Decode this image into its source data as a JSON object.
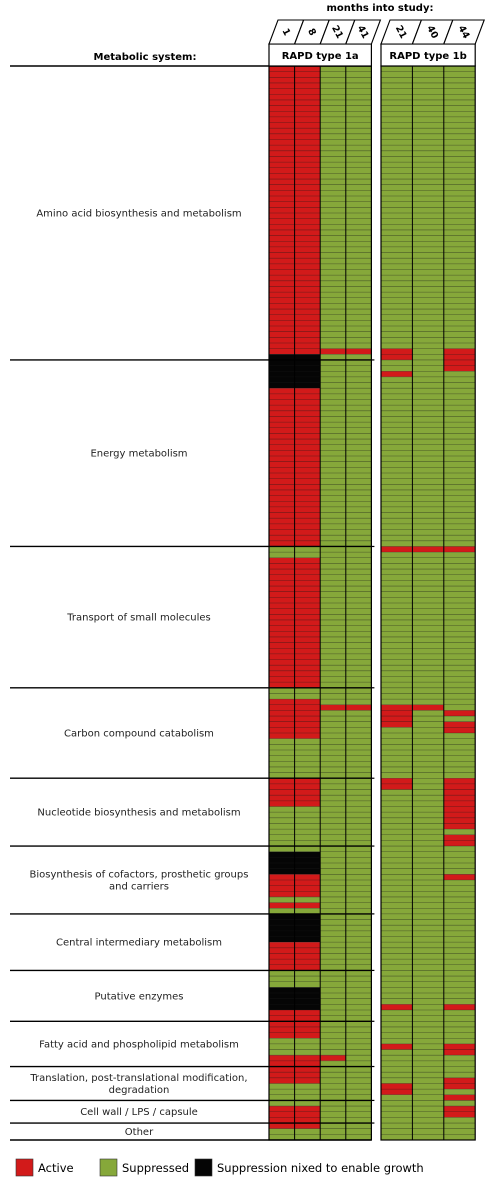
{
  "chart_data": {
    "type": "heatmap",
    "title": "",
    "x_axis_title": "months into study:",
    "y_axis_title": "Metabolic system:",
    "groups": [
      {
        "name": "RAPD type 1a",
        "columns": [
          "1",
          "8",
          "21",
          "41"
        ]
      },
      {
        "name": "RAPD type 1b",
        "columns": [
          "21",
          "40",
          "44"
        ]
      }
    ],
    "categories": [
      {
        "name": "Amino acid biosynthesis and metabolism",
        "rows": 52
      },
      {
        "name": "Energy metabolism",
        "rows": 33
      },
      {
        "name": "Transport of small molecules",
        "rows": 25
      },
      {
        "name": "Carbon compound catabolism",
        "rows": 16
      },
      {
        "name": "Nucleotide biosynthesis and metabolism",
        "rows": 12
      },
      {
        "name": "Biosynthesis of cofactors, prosthetic groups and carriers",
        "rows": 12
      },
      {
        "name": "Central intermediary metabolism",
        "rows": 10
      },
      {
        "name": "Putative enzymes",
        "rows": 9
      },
      {
        "name": "Fatty acid and phospholipid metabolism",
        "rows": 8
      },
      {
        "name": "Translation, post-translational modification, degradation",
        "rows": 6
      },
      {
        "name": "Cell wall / LPS / capsule",
        "rows": 4
      },
      {
        "name": "Other",
        "rows": 3
      }
    ],
    "states": {
      "A": "Active",
      "S": "Suppressed",
      "X": "Suppression nixed to enable growth"
    },
    "colors": {
      "A": "#d21a1a",
      "S": "#86a83a",
      "X": "#050505"
    },
    "legend": [
      {
        "key": "A",
        "label": "Active"
      },
      {
        "key": "S",
        "label": "Suppressed"
      },
      {
        "key": "X",
        "label": "Suppression nixed to enable growth"
      }
    ],
    "runs": [
      [
        "A",
        0,
        1,
        0,
        0
      ],
      [
        "A",
        0,
        1,
        0,
        50
      ],
      [
        "A",
        0,
        1,
        57,
        84
      ],
      [
        "X",
        0,
        1,
        51,
        56
      ],
      [
        "A",
        0,
        1,
        87,
        109
      ],
      [
        "A",
        0,
        1,
        112,
        118
      ],
      [
        "A",
        0,
        1,
        126,
        130
      ],
      [
        "X",
        0,
        1,
        139,
        142
      ],
      [
        "A",
        0,
        1,
        143,
        146
      ],
      [
        "A",
        0,
        1,
        148,
        148
      ],
      [
        "X",
        0,
        1,
        150,
        154
      ],
      [
        "A",
        0,
        1,
        155,
        159
      ],
      [
        "X",
        0,
        1,
        163,
        166
      ],
      [
        "A",
        0,
        1,
        167,
        171
      ],
      [
        "A",
        0,
        1,
        175,
        179
      ],
      [
        "A",
        0,
        1,
        184,
        187
      ],
      [
        "A",
        0,
        1,
        190,
        191
      ],
      [
        "X",
        0,
        1,
        192,
        193
      ],
      [
        "A",
        0,
        1,
        194,
        196
      ],
      [
        "A",
        0,
        1,
        197,
        199
      ],
      [
        "X",
        0,
        1,
        200,
        201
      ],
      [
        "A",
        0,
        1,
        202,
        202
      ],
      [
        "A",
        0,
        1,
        48,
        49
      ],
      [
        "A",
        2,
        3,
        50,
        50
      ],
      [
        "A",
        2,
        3,
        113,
        113
      ],
      [
        "A",
        2,
        2,
        175,
        175
      ],
      [
        "A",
        4,
        4,
        50,
        51
      ],
      [
        "A",
        4,
        4,
        54,
        54
      ],
      [
        "A",
        6,
        6,
        50,
        53
      ],
      [
        "A",
        4,
        4,
        85,
        85
      ],
      [
        "A",
        4,
        5,
        85,
        85
      ],
      [
        "A",
        6,
        6,
        85,
        85
      ],
      [
        "A",
        4,
        4,
        113,
        116
      ],
      [
        "A",
        5,
        5,
        113,
        113
      ],
      [
        "A",
        6,
        6,
        114,
        114
      ],
      [
        "A",
        6,
        6,
        116,
        117
      ],
      [
        "A",
        4,
        4,
        126,
        127
      ],
      [
        "A",
        6,
        6,
        126,
        134
      ],
      [
        "A",
        6,
        6,
        136,
        137
      ],
      [
        "A",
        6,
        6,
        143,
        143
      ],
      [
        "A",
        4,
        4,
        166,
        166
      ],
      [
        "A",
        6,
        6,
        166,
        166
      ],
      [
        "A",
        4,
        4,
        173,
        173
      ],
      [
        "A",
        6,
        6,
        173,
        174
      ],
      [
        "A",
        4,
        4,
        180,
        181
      ],
      [
        "A",
        6,
        6,
        179,
        180
      ],
      [
        "A",
        6,
        6,
        182,
        182
      ],
      [
        "A",
        6,
        6,
        184,
        185
      ],
      [
        "A",
        4,
        5,
        201,
        201
      ]
    ]
  }
}
